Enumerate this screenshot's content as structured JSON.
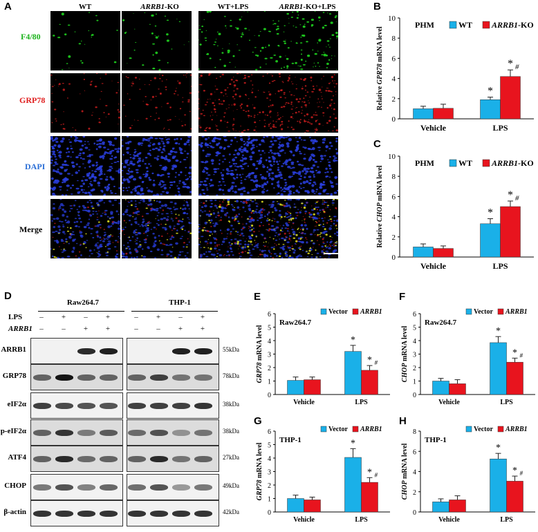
{
  "panel_labels": {
    "A": "A",
    "B": "B",
    "C": "C",
    "D": "D",
    "E": "E",
    "F": "F",
    "G": "G",
    "H": "H"
  },
  "panelA": {
    "columns": [
      {
        "text": "WT",
        "italic_prefix": "",
        "suffix": "WT"
      },
      {
        "italic": "ARRB1",
        "rest": "-KO"
      },
      {
        "text": "WT+LPS"
      },
      {
        "italic": "ARRB1",
        "rest": "-KO+LPS"
      }
    ],
    "col_plain_1": "WT",
    "col_ital_2": "ARRB1",
    "col_rest_2": "-KO",
    "col_plain_3": "WT+LPS",
    "col_ital_4": "ARRB1",
    "col_rest_4": "-KO+LPS",
    "rows": [
      "F4/80",
      "GRP78",
      "DAPI",
      "Merge"
    ],
    "row_colors": [
      "#1db31d",
      "#e02020",
      "#2c6fd6",
      "#000000"
    ]
  },
  "panelD": {
    "groups": [
      "Raw264.7",
      "THP-1"
    ],
    "cond_labels": [
      "LPS",
      "ARRB1"
    ],
    "lps_signs": [
      "–",
      "+",
      "–",
      "+",
      "–",
      "+",
      "–",
      "+"
    ],
    "arrb1_signs": [
      "–",
      "–",
      "+",
      "+",
      "–",
      "–",
      "+",
      "+"
    ],
    "proteins": [
      "ARRB1",
      "GRP78",
      "eIF2α",
      "p-eIF2α",
      "ATF4",
      "CHOP",
      "β-actin"
    ],
    "kda": [
      "55kDa",
      "78kDa",
      "38kDa",
      "38kDa",
      "27kDa",
      "49kDa",
      "42kDa"
    ]
  },
  "colors": {
    "blue": "#1ab0e8",
    "red": "#e8141e"
  },
  "chart_data": [
    {
      "id": "B",
      "type": "bar",
      "annotation": "PHM",
      "categories": [
        "Vehicle",
        "LPS"
      ],
      "series": [
        {
          "name": "WT",
          "values": [
            1.0,
            1.9
          ],
          "err": [
            0.25,
            0.25
          ]
        },
        {
          "name": "ARRB1-KO",
          "values": [
            1.05,
            4.2
          ],
          "err": [
            0.4,
            0.65
          ]
        }
      ],
      "ylabel": "Relative GPR78 mRNA level",
      "ylim": [
        0,
        10
      ],
      "yticks": [
        0,
        2,
        4,
        6,
        8,
        10
      ],
      "marks": [
        [
          "",
          ""
        ],
        [
          "*",
          "*#"
        ]
      ]
    },
    {
      "id": "C",
      "type": "bar",
      "annotation": "PHM",
      "categories": [
        "Vehicle",
        "LPS"
      ],
      "series": [
        {
          "name": "WT",
          "values": [
            1.0,
            3.3
          ],
          "err": [
            0.3,
            0.5
          ]
        },
        {
          "name": "ARRB1-KO",
          "values": [
            0.85,
            5.0
          ],
          "err": [
            0.25,
            0.55
          ]
        }
      ],
      "ylabel": "Relative CHOP mRNA level",
      "ylim": [
        0,
        10
      ],
      "yticks": [
        0,
        2,
        4,
        6,
        8,
        10
      ],
      "marks": [
        [
          "",
          ""
        ],
        [
          "*",
          "*#"
        ]
      ]
    },
    {
      "id": "E",
      "type": "bar",
      "annotation": "Raw264.7",
      "categories": [
        "Vehicle",
        "LPS"
      ],
      "series": [
        {
          "name": "Vector",
          "values": [
            1.05,
            3.2
          ],
          "err": [
            0.25,
            0.45
          ]
        },
        {
          "name": "ARRB1",
          "values": [
            1.1,
            1.8
          ],
          "err": [
            0.2,
            0.35
          ]
        }
      ],
      "ylabel": "GRP78 mRNA level",
      "ylim": [
        0,
        6
      ],
      "yticks": [
        0,
        1,
        2,
        3,
        4,
        5,
        6
      ],
      "marks": [
        [
          "",
          ""
        ],
        [
          "*",
          "*#"
        ]
      ]
    },
    {
      "id": "F",
      "type": "bar",
      "annotation": "Raw264.7",
      "categories": [
        "Vehicle",
        "LPS"
      ],
      "series": [
        {
          "name": "Vector",
          "values": [
            1.0,
            3.85
          ],
          "err": [
            0.2,
            0.45
          ]
        },
        {
          "name": "ARRB1",
          "values": [
            0.8,
            2.4
          ],
          "err": [
            0.3,
            0.3
          ]
        }
      ],
      "ylabel": "CHOP mRNA level",
      "ylim": [
        0,
        6
      ],
      "yticks": [
        0,
        1,
        2,
        3,
        4,
        5,
        6
      ],
      "marks": [
        [
          "",
          ""
        ],
        [
          "*",
          "*#"
        ]
      ]
    },
    {
      "id": "G",
      "type": "bar",
      "annotation": "THP-1",
      "categories": [
        "Vehicle",
        "LPS"
      ],
      "series": [
        {
          "name": "Vector",
          "values": [
            1.0,
            4.05
          ],
          "err": [
            0.25,
            0.65
          ]
        },
        {
          "name": "ARRB1",
          "values": [
            0.9,
            2.2
          ],
          "err": [
            0.2,
            0.35
          ]
        }
      ],
      "ylabel": "GRP78 mRNA level",
      "ylim": [
        0,
        6
      ],
      "yticks": [
        0,
        1,
        2,
        3,
        4,
        5,
        6
      ],
      "marks": [
        [
          "",
          ""
        ],
        [
          "*",
          "*#"
        ]
      ]
    },
    {
      "id": "H",
      "type": "bar",
      "annotation": "THP-1",
      "categories": [
        "Vehicle",
        "LPS"
      ],
      "series": [
        {
          "name": "Vector",
          "values": [
            1.0,
            5.25
          ],
          "err": [
            0.3,
            0.55
          ]
        },
        {
          "name": "ARRB1",
          "values": [
            1.2,
            3.05
          ],
          "err": [
            0.4,
            0.5
          ]
        }
      ],
      "ylabel": "CHOP mRNA level",
      "ylim": [
        0,
        8
      ],
      "yticks": [
        0,
        2,
        4,
        6,
        8
      ],
      "marks": [
        [
          "",
          ""
        ],
        [
          "*",
          "*#"
        ]
      ]
    }
  ]
}
